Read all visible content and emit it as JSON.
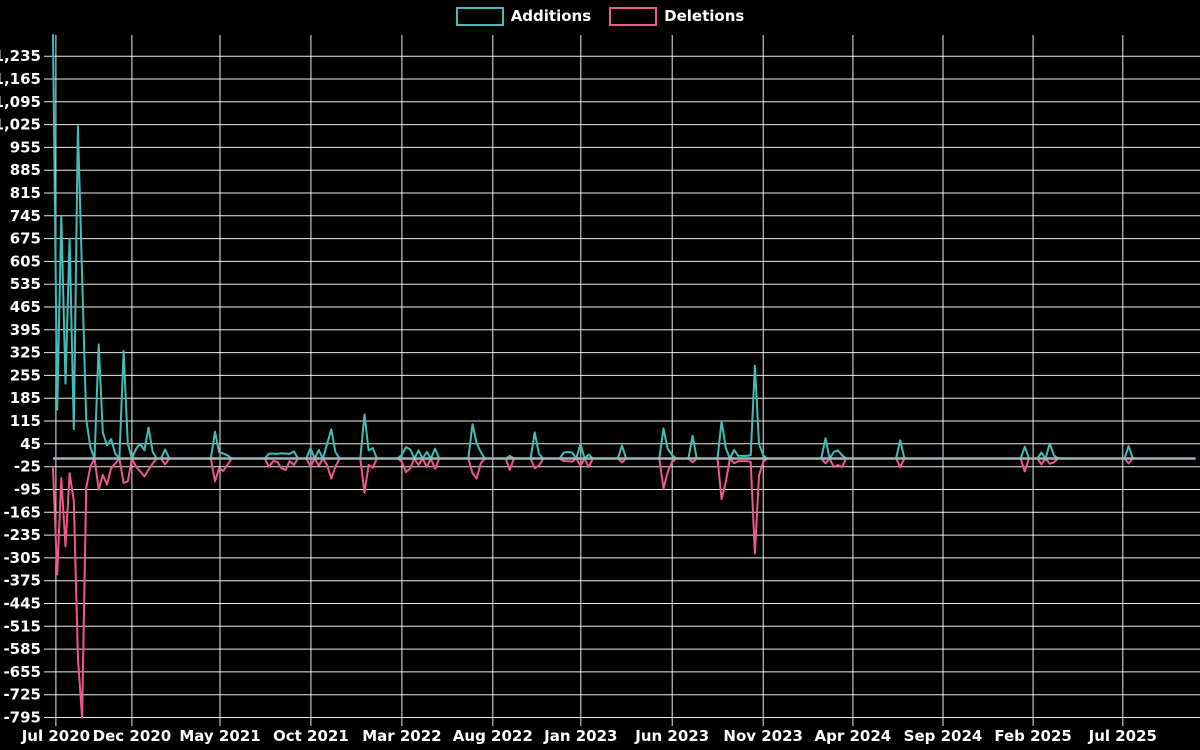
{
  "legend": {
    "items": [
      {
        "label": "Additions",
        "color": "#45bcb8"
      },
      {
        "label": "Deletions",
        "color": "#ee5a85"
      }
    ]
  },
  "chart_data": {
    "type": "line",
    "title": "",
    "xlabel": "",
    "ylabel": "",
    "background_color": "#000000",
    "grid": true,
    "grid_color": "#ffffff",
    "legend_position": "top-center",
    "baseline_color": "#9eb4ba",
    "x_axis": {
      "unit": "weeks since first data point (Jul 2020, weekly commit data)",
      "tick_labels": [
        "Jul 2020",
        "Dec 2020",
        "May 2021",
        "Oct 2021",
        "Mar 2022",
        "Aug 2022",
        "Jan 2023",
        "Jun 2023",
        "Nov 2023",
        "Apr 2024",
        "Sep 2024",
        "Feb 2025",
        "Jul 2025"
      ],
      "tick_weeks": [
        0.7,
        19.0,
        40.2,
        62.1,
        84.0,
        105.9,
        127.1,
        149.1,
        171.0,
        192.6,
        214.3,
        236.0,
        257.6
      ]
    },
    "y_axis": {
      "min": -795,
      "max": 1300,
      "tick_step": 70,
      "tick_values": [
        1235,
        1165,
        1095,
        1025,
        955,
        885,
        815,
        745,
        675,
        605,
        535,
        465,
        395,
        325,
        255,
        185,
        115,
        45,
        -25,
        -95,
        -165,
        -235,
        -305,
        -375,
        -445,
        -515,
        -585,
        -655,
        -725,
        -795
      ],
      "tick_labels": [
        "1,235",
        "1,165",
        "1,095",
        "1,025",
        "955",
        "885",
        "815",
        "745",
        "675",
        "605",
        "535",
        "465",
        "395",
        "325",
        "255",
        "185",
        "115",
        "45",
        "-25",
        "-95",
        "-165",
        "-235",
        "-305",
        "-375",
        "-445",
        "-515",
        "-585",
        "-655",
        "-725",
        "-795"
      ]
    },
    "total_weeks": 275,
    "series": [
      {
        "name": "Additions",
        "color": "#45bcb8",
        "default_value": 0,
        "sparse_points": [
          [
            0,
            1300
          ],
          [
            1,
            150
          ],
          [
            2,
            745
          ],
          [
            3,
            230
          ],
          [
            4,
            675
          ],
          [
            5,
            90
          ],
          [
            6,
            1020
          ],
          [
            7,
            560
          ],
          [
            8,
            120
          ],
          [
            9,
            35
          ],
          [
            11,
            350
          ],
          [
            12,
            80
          ],
          [
            13,
            40
          ],
          [
            14,
            60
          ],
          [
            15,
            15
          ],
          [
            17,
            330
          ],
          [
            18,
            45
          ],
          [
            20,
            30
          ],
          [
            21,
            45
          ],
          [
            22,
            25
          ],
          [
            23,
            95
          ],
          [
            24,
            20
          ],
          [
            27,
            28
          ],
          [
            39,
            82
          ],
          [
            40,
            20
          ],
          [
            41,
            15
          ],
          [
            42,
            10
          ],
          [
            52,
            15
          ],
          [
            53,
            15
          ],
          [
            54,
            14
          ],
          [
            55,
            16
          ],
          [
            56,
            15
          ],
          [
            57,
            14
          ],
          [
            58,
            22
          ],
          [
            62,
            32
          ],
          [
            64,
            26
          ],
          [
            66,
            45
          ],
          [
            67,
            90
          ],
          [
            68,
            20
          ],
          [
            75,
            135
          ],
          [
            76,
            25
          ],
          [
            77,
            32
          ],
          [
            84,
            12
          ],
          [
            85,
            35
          ],
          [
            86,
            28
          ],
          [
            88,
            25
          ],
          [
            90,
            20
          ],
          [
            92,
            30
          ],
          [
            101,
            105
          ],
          [
            102,
            48
          ],
          [
            103,
            20
          ],
          [
            110,
            8
          ],
          [
            116,
            80
          ],
          [
            117,
            15
          ],
          [
            123,
            18
          ],
          [
            124,
            20
          ],
          [
            125,
            18
          ],
          [
            127,
            45
          ],
          [
            129,
            12
          ],
          [
            137,
            40
          ],
          [
            147,
            92
          ],
          [
            148,
            30
          ],
          [
            149,
            12
          ],
          [
            154,
            70
          ],
          [
            161,
            115
          ],
          [
            162,
            32
          ],
          [
            164,
            26
          ],
          [
            165,
            8
          ],
          [
            166,
            8
          ],
          [
            167,
            8
          ],
          [
            168,
            10
          ],
          [
            169,
            285
          ],
          [
            170,
            45
          ],
          [
            171,
            10
          ],
          [
            186,
            62
          ],
          [
            188,
            20
          ],
          [
            189,
            25
          ],
          [
            190,
            10
          ],
          [
            204,
            56
          ],
          [
            234,
            36
          ],
          [
            238,
            18
          ],
          [
            240,
            46
          ],
          [
            241,
            10
          ],
          [
            259,
            38
          ]
        ]
      },
      {
        "name": "Deletions",
        "color": "#ee5a85",
        "default_value": 0,
        "sparse_points": [
          [
            0,
            -30
          ],
          [
            1,
            -355
          ],
          [
            2,
            -60
          ],
          [
            3,
            -270
          ],
          [
            4,
            -45
          ],
          [
            5,
            -130
          ],
          [
            6,
            -610
          ],
          [
            7,
            -795
          ],
          [
            8,
            -90
          ],
          [
            9,
            -25
          ],
          [
            11,
            -95
          ],
          [
            12,
            -50
          ],
          [
            13,
            -80
          ],
          [
            14,
            -30
          ],
          [
            15,
            -15
          ],
          [
            17,
            -75
          ],
          [
            18,
            -70
          ],
          [
            20,
            -25
          ],
          [
            21,
            -40
          ],
          [
            22,
            -55
          ],
          [
            23,
            -35
          ],
          [
            24,
            -15
          ],
          [
            27,
            -18
          ],
          [
            39,
            -70
          ],
          [
            40,
            -30
          ],
          [
            41,
            -38
          ],
          [
            42,
            -20
          ],
          [
            52,
            -25
          ],
          [
            53,
            -8
          ],
          [
            54,
            -10
          ],
          [
            55,
            -30
          ],
          [
            56,
            -35
          ],
          [
            57,
            -8
          ],
          [
            58,
            -20
          ],
          [
            62,
            -25
          ],
          [
            64,
            -22
          ],
          [
            66,
            -20
          ],
          [
            67,
            -62
          ],
          [
            68,
            -25
          ],
          [
            75,
            -105
          ],
          [
            76,
            -20
          ],
          [
            77,
            -28
          ],
          [
            84,
            -10
          ],
          [
            85,
            -42
          ],
          [
            86,
            -30
          ],
          [
            88,
            -20
          ],
          [
            90,
            -26
          ],
          [
            92,
            -32
          ],
          [
            101,
            -45
          ],
          [
            102,
            -62
          ],
          [
            103,
            -15
          ],
          [
            110,
            -35
          ],
          [
            116,
            -30
          ],
          [
            117,
            -22
          ],
          [
            123,
            -8
          ],
          [
            124,
            -8
          ],
          [
            125,
            -10
          ],
          [
            127,
            -22
          ],
          [
            129,
            -26
          ],
          [
            137,
            -12
          ],
          [
            147,
            -92
          ],
          [
            148,
            -42
          ],
          [
            149,
            -12
          ],
          [
            154,
            -12
          ],
          [
            161,
            -125
          ],
          [
            162,
            -72
          ],
          [
            164,
            -15
          ],
          [
            165,
            -8
          ],
          [
            166,
            -8
          ],
          [
            167,
            -8
          ],
          [
            168,
            -10
          ],
          [
            169,
            -292
          ],
          [
            170,
            -52
          ],
          [
            171,
            -10
          ],
          [
            186,
            -15
          ],
          [
            188,
            -26
          ],
          [
            189,
            -20
          ],
          [
            190,
            -26
          ],
          [
            204,
            -26
          ],
          [
            234,
            -40
          ],
          [
            238,
            -18
          ],
          [
            240,
            -16
          ],
          [
            241,
            -12
          ],
          [
            259,
            -15
          ]
        ]
      }
    ]
  }
}
